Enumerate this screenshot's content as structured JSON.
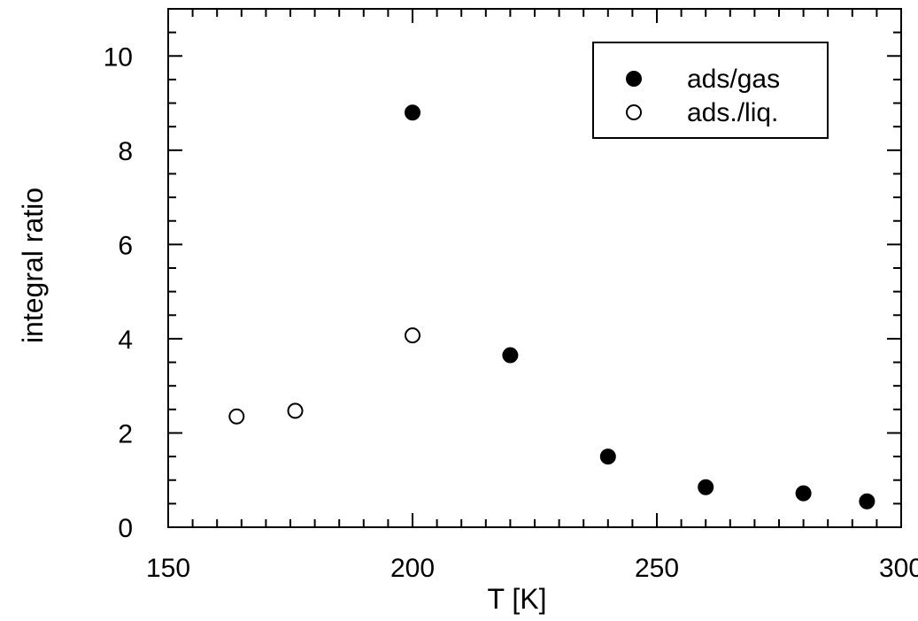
{
  "chart_data": {
    "type": "scatter",
    "title": "",
    "xlabel": "T [K]",
    "ylabel": "integral ratio",
    "xlim": [
      150,
      300
    ],
    "ylim": [
      0,
      11
    ],
    "x_ticks": [
      150,
      200,
      250,
      300
    ],
    "y_ticks": [
      0,
      2,
      4,
      6,
      8,
      10
    ],
    "x_minor_step": 5,
    "y_minor_step": 0.5,
    "grid": false,
    "legend_position": "top-right",
    "series": [
      {
        "name": "ads/gas",
        "marker": "filled-circle",
        "color": "#000000",
        "x": [
          200,
          220,
          240,
          260,
          280,
          293
        ],
        "y": [
          8.8,
          3.65,
          1.5,
          0.85,
          0.72,
          0.55
        ]
      },
      {
        "name": "ads./liq.",
        "marker": "open-circle",
        "color": "#000000",
        "x": [
          164,
          176,
          200
        ],
        "y": [
          2.35,
          2.47,
          4.07
        ]
      }
    ]
  }
}
